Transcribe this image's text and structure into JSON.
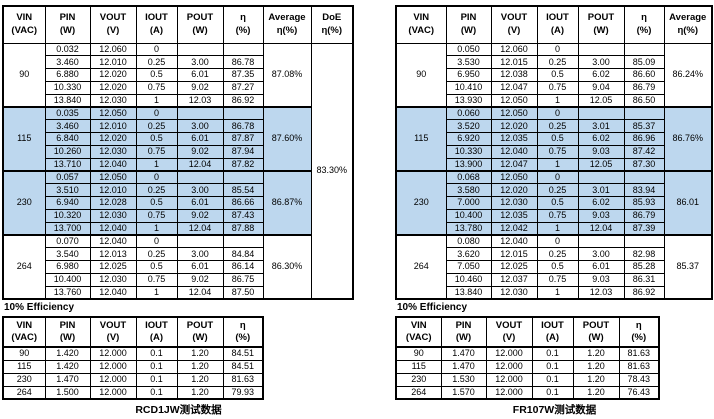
{
  "colors": {
    "highlight_blue": "#BDD7EE",
    "border": "#000000",
    "background": "#FFFFFF"
  },
  "main_tables": [
    {
      "id": "left",
      "headers": [
        [
          "VIN",
          "(VAC)"
        ],
        [
          "PIN",
          "(W)"
        ],
        [
          "VOUT",
          "(V)"
        ],
        [
          "IOUT",
          "(A)"
        ],
        [
          "POUT",
          "(W)"
        ],
        [
          "η",
          "(%)"
        ],
        [
          "Average",
          "η(%)"
        ],
        [
          "DoE",
          "η(%)"
        ]
      ],
      "doe_value": "83.30%",
      "blocks": [
        {
          "vin": "90",
          "highlight": false,
          "average": "87.08%",
          "rows": [
            [
              "0.032",
              "12.060",
              "0",
              "",
              ""
            ],
            [
              "3.460",
              "12.010",
              "0.25",
              "3.00",
              "86.78"
            ],
            [
              "6.880",
              "12.020",
              "0.5",
              "6.01",
              "87.35"
            ],
            [
              "10.330",
              "12.020",
              "0.75",
              "9.02",
              "87.27"
            ],
            [
              "13.840",
              "12.030",
              "1",
              "12.03",
              "86.92"
            ]
          ]
        },
        {
          "vin": "115",
          "highlight": true,
          "average": "87.60%",
          "rows": [
            [
              "0.035",
              "12.050",
              "0",
              "",
              ""
            ],
            [
              "3.460",
              "12.010",
              "0.25",
              "3.00",
              "86.78"
            ],
            [
              "6.840",
              "12.020",
              "0.5",
              "6.01",
              "87.87"
            ],
            [
              "10.260",
              "12.030",
              "0.75",
              "9.02",
              "87.94"
            ],
            [
              "13.710",
              "12.040",
              "1",
              "12.04",
              "87.82"
            ]
          ]
        },
        {
          "vin": "230",
          "highlight": true,
          "average": "86.87%",
          "rows": [
            [
              "0.057",
              "12.050",
              "0",
              "",
              ""
            ],
            [
              "3.510",
              "12.010",
              "0.25",
              "3.00",
              "85.54"
            ],
            [
              "6.940",
              "12.028",
              "0.5",
              "6.01",
              "86.66"
            ],
            [
              "10.320",
              "12.030",
              "0.75",
              "9.02",
              "87.43"
            ],
            [
              "13.700",
              "12.040",
              "1",
              "12.04",
              "87.88"
            ]
          ]
        },
        {
          "vin": "264",
          "highlight": false,
          "average": "86.30%",
          "rows": [
            [
              "0.070",
              "12.040",
              "0",
              "",
              ""
            ],
            [
              "3.540",
              "12.013",
              "0.25",
              "3.00",
              "84.84"
            ],
            [
              "6.980",
              "12.025",
              "0.5",
              "6.01",
              "86.14"
            ],
            [
              "10.400",
              "12.030",
              "0.75",
              "9.02",
              "86.75"
            ],
            [
              "13.760",
              "12.040",
              "1",
              "12.04",
              "87.50"
            ]
          ]
        }
      ]
    },
    {
      "id": "right",
      "headers": [
        [
          "VIN",
          "(VAC)"
        ],
        [
          "PIN",
          "(W)"
        ],
        [
          "VOUT",
          "(V)"
        ],
        [
          "IOUT",
          "(A)"
        ],
        [
          "POUT",
          "(W)"
        ],
        [
          "η",
          "(%)"
        ],
        [
          "Average",
          "η(%)"
        ]
      ],
      "blocks": [
        {
          "vin": "90",
          "highlight": false,
          "average": "86.24%",
          "rows": [
            [
              "0.050",
              "12.060",
              "0",
              "",
              ""
            ],
            [
              "3.530",
              "12.015",
              "0.25",
              "3.00",
              "85.09"
            ],
            [
              "6.950",
              "12.038",
              "0.5",
              "6.02",
              "86.60"
            ],
            [
              "10.410",
              "12.047",
              "0.75",
              "9.04",
              "86.79"
            ],
            [
              "13.930",
              "12.050",
              "1",
              "12.05",
              "86.50"
            ]
          ]
        },
        {
          "vin": "115",
          "highlight": true,
          "average": "86.76%",
          "rows": [
            [
              "0.060",
              "12.050",
              "0",
              "",
              ""
            ],
            [
              "3.520",
              "12.020",
              "0.25",
              "3.01",
              "85.37"
            ],
            [
              "6.920",
              "12.035",
              "0.5",
              "6.02",
              "86.96"
            ],
            [
              "10.330",
              "12.040",
              "0.75",
              "9.03",
              "87.42"
            ],
            [
              "13.900",
              "12.047",
              "1",
              "12.05",
              "87.30"
            ]
          ]
        },
        {
          "vin": "230",
          "highlight": true,
          "average": "86.01",
          "rows": [
            [
              "0.068",
              "12.050",
              "0",
              "",
              ""
            ],
            [
              "3.580",
              "12.020",
              "0.25",
              "3.01",
              "83.94"
            ],
            [
              "7.000",
              "12.030",
              "0.5",
              "6.02",
              "85.93"
            ],
            [
              "10.400",
              "12.035",
              "0.75",
              "9.03",
              "86.79"
            ],
            [
              "13.780",
              "12.042",
              "1",
              "12.04",
              "87.39"
            ]
          ]
        },
        {
          "vin": "264",
          "highlight": false,
          "average": "85.37",
          "rows": [
            [
              "0.080",
              "12.040",
              "0",
              "",
              ""
            ],
            [
              "3.620",
              "12.015",
              "0.25",
              "3.00",
              "82.98"
            ],
            [
              "7.050",
              "12.025",
              "0.5",
              "6.01",
              "85.28"
            ],
            [
              "10.460",
              "12.037",
              "0.75",
              "9.03",
              "86.31"
            ],
            [
              "13.840",
              "12.030",
              "1",
              "12.03",
              "86.92"
            ]
          ]
        }
      ]
    }
  ],
  "small_tables": [
    {
      "id": "left",
      "title": "10% Efficiency",
      "headers": [
        [
          "VIN",
          "(VAC)"
        ],
        [
          "PIN",
          "(W)"
        ],
        [
          "VOUT",
          "(V)"
        ],
        [
          "IOUT",
          "(A)"
        ],
        [
          "POUT",
          "(W)"
        ],
        [
          "η",
          "(%)"
        ]
      ],
      "rows": [
        [
          "90",
          "1.420",
          "12.000",
          "0.1",
          "1.20",
          "84.51"
        ],
        [
          "115",
          "1.420",
          "12.000",
          "0.1",
          "1.20",
          "84.51"
        ],
        [
          "230",
          "1.470",
          "12.000",
          "0.1",
          "1.20",
          "81.63"
        ],
        [
          "264",
          "1.500",
          "12.000",
          "0.1",
          "1.20",
          "79.93"
        ]
      ],
      "caption": "RCD1JW测试数据"
    },
    {
      "id": "right",
      "title": "10% Efficiency",
      "headers": [
        [
          "VIN",
          "(VAC)"
        ],
        [
          "PIN",
          "(W)"
        ],
        [
          "VOUT",
          "(V)"
        ],
        [
          "IOUT",
          "(A)"
        ],
        [
          "POUT",
          "(W)"
        ],
        [
          "η",
          "(%)"
        ]
      ],
      "rows": [
        [
          "90",
          "1.470",
          "12.000",
          "0.1",
          "1.20",
          "81.63"
        ],
        [
          "115",
          "1.470",
          "12.000",
          "0.1",
          "1.20",
          "81.63"
        ],
        [
          "230",
          "1.530",
          "12.000",
          "0.1",
          "1.20",
          "78.43"
        ],
        [
          "264",
          "1.570",
          "12.000",
          "0.1",
          "1.20",
          "76.43"
        ]
      ],
      "caption": "FR107W测试数据"
    }
  ]
}
